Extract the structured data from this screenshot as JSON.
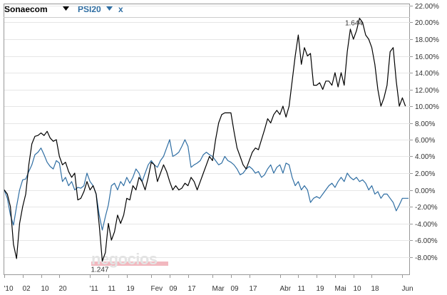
{
  "legend": {
    "series1": {
      "label": "Sonaecom",
      "icon": "triangle-down-icon",
      "color": "#000000"
    },
    "series2": {
      "label": "PSI20",
      "icon": "triangle-down-icon",
      "color": "#2f6ea3"
    },
    "close": "x"
  },
  "watermark": "negocios",
  "chart_data": {
    "type": "line",
    "ylim": [
      -0.1,
      0.22
    ],
    "y_ticks": [
      {
        "v": 0.22,
        "label": "22.00%"
      },
      {
        "v": 0.2,
        "label": "20.00%"
      },
      {
        "v": 0.18,
        "label": "18.00%"
      },
      {
        "v": 0.16,
        "label": "16.00%"
      },
      {
        "v": 0.14,
        "label": "14.00%"
      },
      {
        "v": 0.12,
        "label": "12.00%"
      },
      {
        "v": 0.1,
        "label": "10.00%"
      },
      {
        "v": 0.08,
        "label": "8.00%"
      },
      {
        "v": 0.06,
        "label": "6.00%"
      },
      {
        "v": 0.04,
        "label": "4.00%"
      },
      {
        "v": 0.02,
        "label": "2.00%"
      },
      {
        "v": 0.0,
        "label": "0.00%"
      },
      {
        "v": -0.02,
        "label": "-2.00%"
      },
      {
        "v": -0.04,
        "label": "-4.00%"
      },
      {
        "v": -0.06,
        "label": "-6.00%"
      },
      {
        "v": -0.08,
        "label": "-8.00%"
      }
    ],
    "x_ticks": [
      {
        "i": 0,
        "label": "'10"
      },
      {
        "i": 6,
        "label": "02"
      },
      {
        "i": 12,
        "label": "10"
      },
      {
        "i": 18,
        "label": "20"
      },
      {
        "i": 28,
        "label": "'11"
      },
      {
        "i": 34,
        "label": "11"
      },
      {
        "i": 40,
        "label": "19"
      },
      {
        "i": 48,
        "label": "Fev"
      },
      {
        "i": 54,
        "label": "09"
      },
      {
        "i": 60,
        "label": "17"
      },
      {
        "i": 68,
        "label": "Mar"
      },
      {
        "i": 74,
        "label": "09"
      },
      {
        "i": 80,
        "label": "17"
      },
      {
        "i": 90,
        "label": "Abr"
      },
      {
        "i": 96,
        "label": "11"
      },
      {
        "i": 102,
        "label": "19"
      },
      {
        "i": 108,
        "label": "Mai"
      },
      {
        "i": 114,
        "label": "10"
      },
      {
        "i": 120,
        "label": "18"
      },
      {
        "i": 130,
        "label": "Jun"
      }
    ],
    "x_count": 133,
    "series": [
      {
        "name": "Sonaecom",
        "color": "#000000",
        "values": [
          0.0,
          -0.005,
          -0.02,
          -0.065,
          -0.082,
          -0.04,
          -0.02,
          -0.005,
          0.03,
          0.055,
          0.064,
          0.065,
          0.068,
          0.065,
          0.07,
          0.062,
          0.058,
          0.06,
          0.04,
          0.03,
          0.033,
          0.022,
          0.015,
          0.02,
          -0.012,
          -0.01,
          -0.002,
          0.01,
          0.0,
          0.005,
          -0.005,
          -0.042,
          -0.085,
          -0.075,
          -0.04,
          -0.06,
          -0.05,
          -0.03,
          -0.04,
          -0.03,
          -0.01,
          -0.012,
          0.005,
          0.0,
          0.015,
          0.01,
          0.0,
          0.015,
          0.033,
          0.03,
          0.01,
          0.02,
          0.03,
          0.022,
          0.01,
          0.0,
          0.005,
          0.0,
          0.002,
          0.008,
          0.005,
          0.015,
          0.01,
          0.0,
          0.01,
          0.02,
          0.03,
          0.04,
          0.035,
          0.06,
          0.08,
          0.09,
          0.092,
          0.092,
          0.092,
          0.07,
          0.05,
          0.04,
          0.03,
          0.025,
          0.035,
          0.045,
          0.05,
          0.048,
          0.06,
          0.072,
          0.085,
          0.08,
          0.09,
          0.095,
          0.09,
          0.1,
          0.087,
          0.1,
          0.13,
          0.16,
          0.185,
          0.15,
          0.17,
          0.16,
          0.163,
          0.125,
          0.125,
          0.128,
          0.12,
          0.13,
          0.13,
          0.125,
          0.14,
          0.123,
          0.14,
          0.125,
          0.165,
          0.192,
          0.18,
          0.19,
          0.205,
          0.2,
          0.185,
          0.18,
          0.17,
          0.15,
          0.12,
          0.1,
          0.11,
          0.125,
          0.165,
          0.17,
          0.13,
          0.1,
          0.11,
          0.1
        ]
      },
      {
        "name": "PSI20",
        "color": "#2f6ea3",
        "values": [
          0.0,
          -0.01,
          -0.03,
          -0.042,
          -0.02,
          0.0,
          0.012,
          0.013,
          0.022,
          0.03,
          0.042,
          0.045,
          0.05,
          0.042,
          0.033,
          0.028,
          0.025,
          0.035,
          0.032,
          0.01,
          0.015,
          0.005,
          0.01,
          0.0,
          0.003,
          0.002,
          0.005,
          0.02,
          0.01,
          0.005,
          -0.005,
          -0.03,
          -0.048,
          -0.032,
          -0.018,
          0.005,
          0.008,
          0.0,
          0.01,
          0.005,
          0.015,
          0.008,
          0.015,
          0.025,
          0.02,
          0.01,
          0.02,
          0.03,
          0.035,
          0.03,
          0.027,
          0.035,
          0.04,
          0.05,
          0.06,
          0.04,
          0.042,
          0.045,
          0.052,
          0.06,
          0.052,
          0.027,
          0.03,
          0.032,
          0.035,
          0.042,
          0.045,
          0.042,
          0.04,
          0.035,
          0.03,
          0.032,
          0.04,
          0.035,
          0.033,
          0.03,
          0.025,
          0.018,
          0.02,
          0.025,
          0.028,
          0.025,
          0.02,
          0.022,
          0.015,
          0.018,
          0.025,
          0.03,
          0.02,
          0.027,
          0.03,
          0.02,
          0.032,
          0.03,
          0.015,
          0.005,
          0.01,
          0.0,
          0.005,
          0.0,
          -0.015,
          -0.01,
          -0.008,
          -0.01,
          -0.005,
          0.0,
          0.005,
          0.008,
          0.003,
          0.01,
          0.015,
          0.01,
          0.02,
          0.015,
          0.012,
          0.015,
          0.01,
          0.012,
          0.008,
          0.0,
          0.005,
          -0.005,
          -0.002,
          -0.01,
          -0.005,
          -0.005,
          -0.01,
          -0.015,
          -0.025,
          -0.018,
          -0.01,
          -0.01,
          -0.01
        ]
      }
    ],
    "annotations": [
      {
        "series": 0,
        "i": 115,
        "label": "1.644"
      },
      {
        "series": 0,
        "i": 32,
        "label": "1.247"
      }
    ]
  }
}
